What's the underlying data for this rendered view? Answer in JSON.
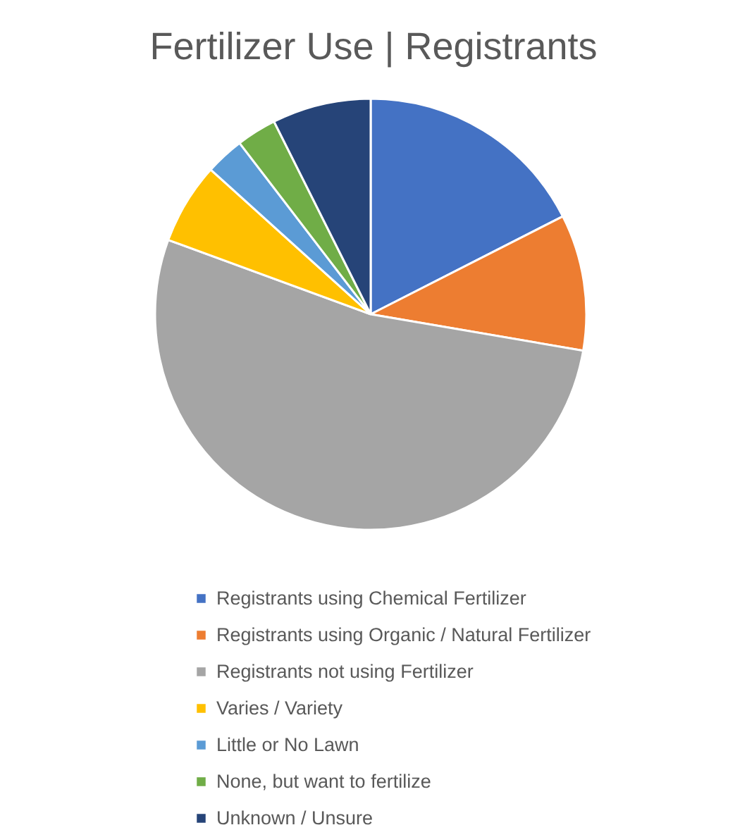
{
  "chart_data": {
    "type": "pie",
    "title": "Fertilizer Use | Registrants",
    "categories": [
      "Registrants using Chemical Fertilizer",
      "Registrants using Organic / Natural Fertilizer",
      "Registrants not using Fertilizer",
      "Varies / Variety",
      "Little or No Lawn",
      "None, but want to fertilize",
      "Unknown / Unsure"
    ],
    "values": [
      17.5,
      10.2,
      52.9,
      6.1,
      2.9,
      3.0,
      7.4
    ],
    "colors": [
      "#4472c4",
      "#ed7d31",
      "#a5a5a5",
      "#ffc000",
      "#5b9bd5",
      "#70ad47",
      "#264478"
    ],
    "legend": "bottom"
  }
}
